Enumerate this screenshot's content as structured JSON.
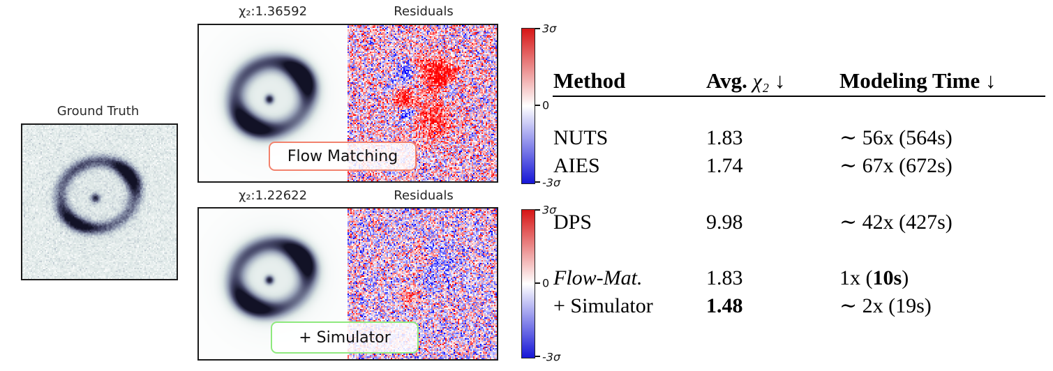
{
  "figure": {
    "ground_truth_title": "Ground Truth"
  },
  "panels": [
    {
      "chi2_title": "χ₂:1.36592",
      "residuals_title": "Residuals",
      "method_label": "Flow Matching",
      "accent_color": "#f2826d"
    },
    {
      "chi2_title": "χ₂:1.22622",
      "residuals_title": "Residuals",
      "method_label": "+ Simulator",
      "accent_color": "#8fe97e"
    }
  ],
  "colorbar": {
    "top_label": "3σ",
    "mid_label": "0",
    "bottom_label": "-3σ",
    "max_color": "#d61616",
    "mid_color": "#ffffff",
    "min_color": "#1616d6"
  },
  "table": {
    "header": {
      "method": "Method",
      "avg_prefix": "Avg.",
      "avg_math": "χ₂",
      "avg_arrow": "↓",
      "time_label": "Modeling Time",
      "time_arrow": "↓"
    },
    "rows": [
      {
        "method": "NUTS",
        "chi2": "1.83",
        "time_pre": "∼ 56x (564s)",
        "time_bold": "",
        "time_post": ""
      },
      {
        "method": "AIES",
        "chi2": "1.74",
        "time_pre": "∼ 67x (672s)",
        "time_bold": "",
        "time_post": ""
      },
      {
        "method": "DPS",
        "chi2": "9.98",
        "time_pre": "∼ 42x (427s)",
        "time_bold": "",
        "time_post": ""
      },
      {
        "method": "Flow-Mat.",
        "chi2": "1.83",
        "time_pre": "1x (",
        "time_bold": "10s",
        "time_post": ")"
      },
      {
        "method": "+ Simulator",
        "chi2": "1.48",
        "time_pre": "∼ 2x (19s)",
        "time_bold": "",
        "time_post": ""
      }
    ]
  }
}
